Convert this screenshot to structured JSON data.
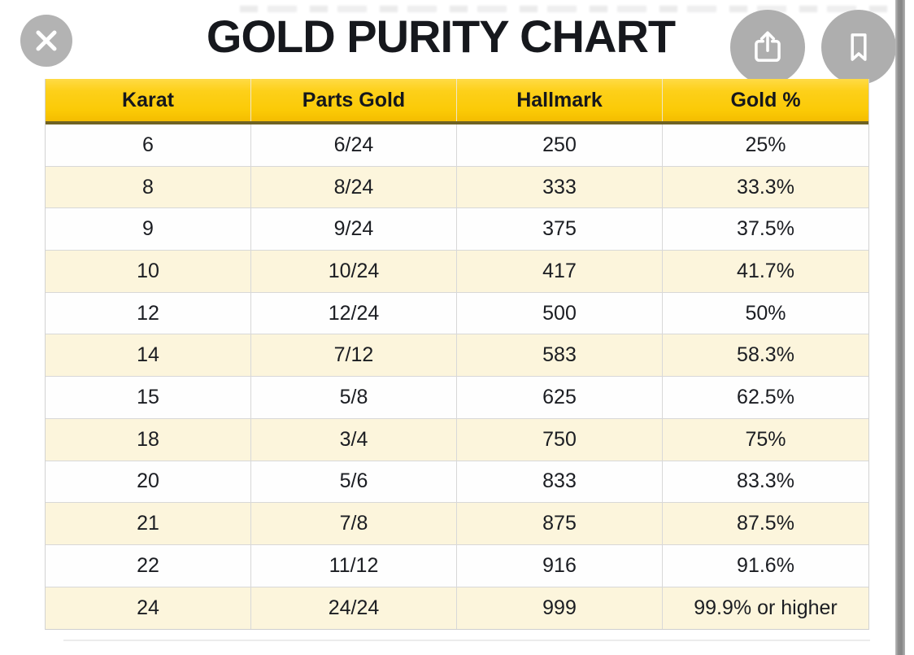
{
  "title": "GOLD PURITY CHART",
  "viewer": {
    "close_icon": "close-x",
    "share_icon": "share-up-arrow",
    "bookmark_icon": "bookmark-ribbon",
    "has_right_scrollbar": true
  },
  "colors": {
    "header_gold_top": "#ffdb45",
    "header_gold_bottom": "#f4bd00",
    "header_bottom_border": "#6f6223",
    "row_white": "#fefefe",
    "row_cream": "#fcf5dc",
    "grid_line": "#d8d8d8",
    "title_text": "#16181d",
    "button_gray": "#b3b3b3",
    "scrollbar_gray": "#8d8d8d"
  },
  "chart_data": {
    "type": "table",
    "title": "GOLD PURITY CHART",
    "columns": [
      "Karat",
      "Parts Gold",
      "Hallmark",
      "Gold %"
    ],
    "rows": [
      [
        "6",
        "6/24",
        "250",
        "25%"
      ],
      [
        "8",
        "8/24",
        "333",
        "33.3%"
      ],
      [
        "9",
        "9/24",
        "375",
        "37.5%"
      ],
      [
        "10",
        "10/24",
        "417",
        "41.7%"
      ],
      [
        "12",
        "12/24",
        "500",
        "50%"
      ],
      [
        "14",
        "7/12",
        "583",
        "58.3%"
      ],
      [
        "15",
        "5/8",
        "625",
        "62.5%"
      ],
      [
        "18",
        "3/4",
        "750",
        "75%"
      ],
      [
        "20",
        "5/6",
        "833",
        "83.3%"
      ],
      [
        "21",
        "7/8",
        "875",
        "87.5%"
      ],
      [
        "22",
        "11/12",
        "916",
        "91.6%"
      ],
      [
        "24",
        "24/24",
        "999",
        "99.9% or higher"
      ]
    ],
    "layout": "striped-table, header gold gradient, alternating cream rows, all cells centered"
  }
}
